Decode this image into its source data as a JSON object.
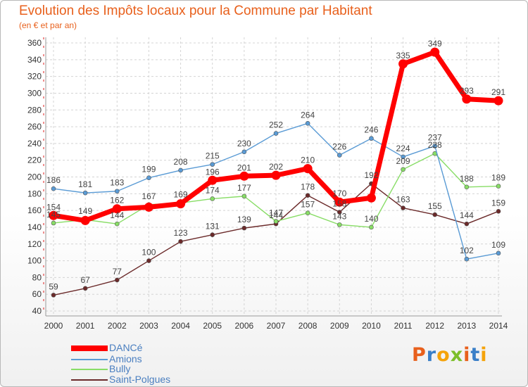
{
  "header": {
    "title": "Evolution des Impôts locaux pour la Commune par Habitant",
    "subtitle": "(en € et par an)"
  },
  "logo": {
    "text": "Proxiti"
  },
  "chart_data": {
    "type": "line",
    "title": "Evolution des Impôts locaux pour la Commune par Habitant",
    "subtitle": "(en € et par an)",
    "x": [
      "2000",
      "2001",
      "2002",
      "2003",
      "2004",
      "2005",
      "2006",
      "2007",
      "2008",
      "2009",
      "2010",
      "2011",
      "2012",
      "2013",
      "2014"
    ],
    "ylim": [
      40,
      360
    ],
    "yticks": [
      40,
      60,
      80,
      100,
      120,
      140,
      160,
      180,
      200,
      220,
      240,
      260,
      280,
      300,
      320,
      340,
      360
    ],
    "grid": true,
    "legend_position": "bottom-left",
    "series": [
      {
        "name": "DANCé",
        "color": "#ff0000",
        "values": [
          154,
          148,
          162,
          164,
          168,
          196,
          201,
          202,
          210,
          170,
          175,
          335,
          349,
          293,
          291
        ],
        "labels": [
          "154",
          "",
          "162",
          "",
          "",
          "196",
          "201",
          "202",
          "210",
          "170",
          "",
          "335",
          "349",
          "293",
          "291"
        ]
      },
      {
        "name": "Amions",
        "color": "#5a9bd5",
        "values": [
          186,
          181,
          183,
          199,
          208,
          215,
          230,
          252,
          264,
          226,
          246,
          224,
          237,
          102,
          109
        ],
        "labels": [
          "186",
          "181",
          "183",
          "199",
          "208",
          "215",
          "230",
          "252",
          "264",
          "226",
          "246",
          "224",
          "237",
          "102",
          "109"
        ]
      },
      {
        "name": "Bully",
        "color": "#88dd66",
        "values": [
          145,
          149,
          144,
          167,
          169,
          174,
          177,
          147,
          157,
          143,
          140,
          209,
          228,
          188,
          189
        ],
        "labels": [
          "145",
          "149",
          "144",
          "167",
          "169",
          "174",
          "177",
          "147",
          "157",
          "143",
          "140",
          "209",
          "228",
          "188",
          "189"
        ]
      },
      {
        "name": "Saint-Polgues",
        "color": "#6b2a2a",
        "values": [
          59,
          67,
          77,
          100,
          123,
          131,
          139,
          144,
          178,
          158,
          192,
          163,
          155,
          144,
          159
        ],
        "labels": [
          "59",
          "67",
          "77",
          "100",
          "123",
          "131",
          "139",
          "144",
          "178",
          "158",
          "192",
          "163",
          "155",
          "144",
          "159"
        ]
      }
    ]
  }
}
